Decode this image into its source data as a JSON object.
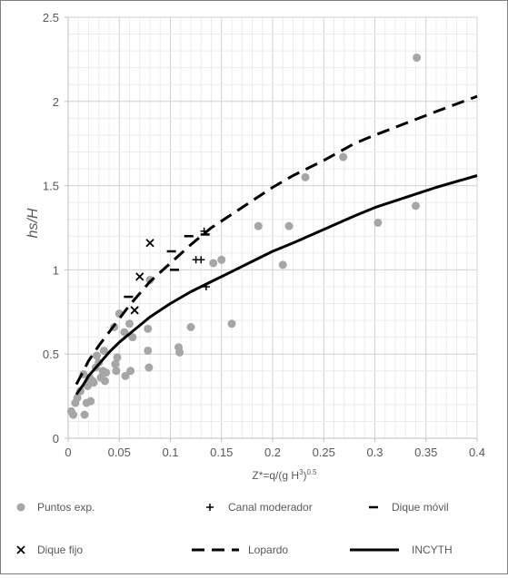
{
  "chart_data": {
    "type": "scatter",
    "title": "",
    "xlabel": "Z*=q/(g H",
    "xlabel_sup": "3",
    "xlabel_tail": ")",
    "xlabel_sup2": "0.5",
    "ylabel": "hs/H",
    "xlim": [
      0,
      0.4
    ],
    "ylim": [
      0,
      2.5
    ],
    "x_ticks": [
      "0",
      "0.05",
      "0.1",
      "0.15",
      "0.2",
      "0.25",
      "0.3",
      "0.35",
      "0.4"
    ],
    "x_tick_values": [
      0,
      0.05,
      0.1,
      0.15,
      0.2,
      0.25,
      0.3,
      0.35,
      0.4
    ],
    "y_ticks": [
      "0",
      "0.5",
      "1",
      "1.5",
      "2",
      "2.5"
    ],
    "y_tick_values": [
      0,
      0.5,
      1,
      1.5,
      2,
      2.5
    ],
    "grid": true,
    "legend_placement": "bottom",
    "colors": {
      "points": "#a6a6a6",
      "markers": "#000000",
      "grid": "#d9d9d9",
      "axis": "#bfbfbf",
      "text": "#595959"
    },
    "series": [
      {
        "name": "Puntos exp.",
        "kind": "scatter-dot",
        "x": [
          0.003,
          0.005,
          0.007,
          0.009,
          0.012,
          0.015,
          0.016,
          0.018,
          0.019,
          0.02,
          0.021,
          0.022,
          0.024,
          0.025,
          0.027,
          0.028,
          0.03,
          0.032,
          0.034,
          0.035,
          0.036,
          0.037,
          0.045,
          0.046,
          0.047,
          0.048,
          0.05,
          0.055,
          0.056,
          0.06,
          0.061,
          0.063,
          0.078,
          0.078,
          0.079,
          0.08,
          0.108,
          0.109,
          0.12,
          0.142,
          0.15,
          0.16,
          0.186,
          0.21,
          0.216,
          0.232,
          0.269,
          0.303,
          0.34,
          0.341
        ],
        "y": [
          0.16,
          0.14,
          0.21,
          0.24,
          0.28,
          0.38,
          0.14,
          0.21,
          0.31,
          0.33,
          0.36,
          0.22,
          0.34,
          0.33,
          0.42,
          0.49,
          0.45,
          0.36,
          0.4,
          0.52,
          0.34,
          0.39,
          0.66,
          0.44,
          0.4,
          0.48,
          0.74,
          0.63,
          0.37,
          0.68,
          0.4,
          0.6,
          0.65,
          0.52,
          0.42,
          0.94,
          0.54,
          0.51,
          0.66,
          1.04,
          1.06,
          0.68,
          1.26,
          1.03,
          1.26,
          1.55,
          1.67,
          1.28,
          1.38,
          2.26
        ]
      },
      {
        "name": "Canal moderador",
        "kind": "plus",
        "x": [
          0.133,
          0.125,
          0.13,
          0.135
        ],
        "y": [
          1.23,
          1.06,
          1.06,
          0.9
        ]
      },
      {
        "name": "Dique móvil",
        "kind": "dash",
        "x": [
          0.059,
          0.101,
          0.104,
          0.118,
          0.134
        ],
        "y": [
          0.84,
          1.11,
          1.0,
          1.2,
          1.21
        ]
      },
      {
        "name": "Dique fijo",
        "kind": "x",
        "x": [
          0.07,
          0.08,
          0.065
        ],
        "y": [
          0.96,
          1.16,
          0.76
        ]
      },
      {
        "name": "Lopardo",
        "kind": "dashed-line",
        "x": [
          0.008,
          0.015,
          0.02,
          0.03,
          0.04,
          0.05,
          0.06,
          0.07,
          0.08,
          0.1,
          0.12,
          0.14,
          0.16,
          0.18,
          0.2,
          0.22,
          0.25,
          0.28,
          0.3,
          0.33,
          0.36,
          0.4
        ],
        "y": [
          0.32,
          0.4,
          0.46,
          0.55,
          0.63,
          0.71,
          0.79,
          0.86,
          0.93,
          1.04,
          1.15,
          1.25,
          1.33,
          1.41,
          1.49,
          1.56,
          1.65,
          1.75,
          1.8,
          1.87,
          1.94,
          2.03
        ]
      },
      {
        "name": "INCYTH",
        "kind": "solid-line",
        "x": [
          0.008,
          0.015,
          0.02,
          0.03,
          0.04,
          0.05,
          0.06,
          0.07,
          0.08,
          0.1,
          0.12,
          0.14,
          0.16,
          0.18,
          0.2,
          0.22,
          0.25,
          0.28,
          0.3,
          0.33,
          0.36,
          0.4
        ],
        "y": [
          0.26,
          0.32,
          0.37,
          0.44,
          0.51,
          0.57,
          0.62,
          0.67,
          0.72,
          0.8,
          0.87,
          0.93,
          0.99,
          1.05,
          1.11,
          1.16,
          1.24,
          1.32,
          1.37,
          1.43,
          1.49,
          1.56
        ]
      }
    ]
  }
}
